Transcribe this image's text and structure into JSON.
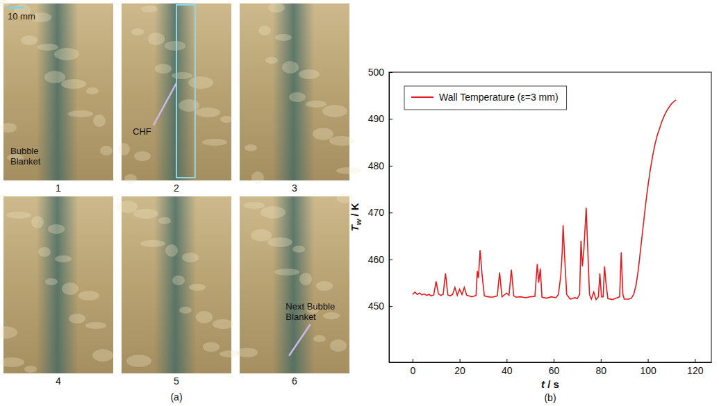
{
  "chart_data": {
    "type": "line",
    "caption": "(b)",
    "x_label": {
      "symbol": "t",
      "unit": " / s"
    },
    "y_label": {
      "symbol": "T",
      "subscript": "w",
      "unit": " / K"
    },
    "xlim": [
      -10,
      127
    ],
    "ylim": [
      438,
      500
    ],
    "xticks": [
      0,
      20,
      40,
      60,
      80,
      100,
      120
    ],
    "yticks": [
      450,
      460,
      470,
      480,
      490,
      500
    ],
    "grid": false,
    "legend": "upper left",
    "x": [
      0,
      1,
      2,
      3,
      4,
      5,
      6,
      7,
      8,
      9,
      10,
      11,
      12,
      13,
      14,
      15,
      16,
      17,
      18,
      19,
      20,
      21,
      22,
      23,
      24,
      25,
      26,
      27,
      27.5,
      28,
      28.7,
      29.5,
      30.5,
      32,
      34,
      36,
      37,
      38,
      40,
      41,
      42,
      43,
      44,
      46,
      48,
      50,
      52,
      53,
      53.6,
      54.3,
      55,
      57,
      59,
      61,
      62,
      63,
      63.6,
      64,
      64.6,
      65.5,
      67,
      69,
      70,
      71,
      71.6,
      72.2,
      72.8,
      73.3,
      73.8,
      74.4,
      75.2,
      76,
      77,
      78,
      79,
      79.6,
      80.3,
      81,
      81.6,
      82.2,
      83,
      85,
      87,
      88,
      88.7,
      89.4,
      90,
      92,
      93,
      94,
      95,
      96,
      97,
      98,
      99,
      100,
      101,
      102,
      103,
      104,
      105,
      106,
      107,
      108,
      109,
      110,
      111,
      112
    ],
    "series": [
      {
        "name": "Wall Temperature (ε=3 mm)",
        "color": "#e41a1c",
        "line_style": "solid",
        "values": [
          452.5,
          453.0,
          452.5,
          452.8,
          452.4,
          452.6,
          452.3,
          452.5,
          452.2,
          452.4,
          455.3,
          452.6,
          452.3,
          452.5,
          457.0,
          452.4,
          452.2,
          452.5,
          454.0,
          452.3,
          453.6,
          452.5,
          454.0,
          452.3,
          452.2,
          452.0,
          452.1,
          452.3,
          457.5,
          456.0,
          462.0,
          457.0,
          452.2,
          452.0,
          451.9,
          452.2,
          457.2,
          452.0,
          452.8,
          452.3,
          457.8,
          452.2,
          451.9,
          452.0,
          451.8,
          452.0,
          452.1,
          459.0,
          455.0,
          458.0,
          451.9,
          451.7,
          452.0,
          451.8,
          452.5,
          456.5,
          461.5,
          467.3,
          461.0,
          452.5,
          451.5,
          451.8,
          451.6,
          452.5,
          464.0,
          458.5,
          462.0,
          466.5,
          471.0,
          463.0,
          452.5,
          451.5,
          453.0,
          451.4,
          452.0,
          457.0,
          452.0,
          452.0,
          458.5,
          455.0,
          451.6,
          451.4,
          451.8,
          452.0,
          461.5,
          452.5,
          451.5,
          451.5,
          451.7,
          452.5,
          454.5,
          458.0,
          462.5,
          467.0,
          471.5,
          475.5,
          479.0,
          482.0,
          484.5,
          486.5,
          488.0,
          489.5,
          490.7,
          491.7,
          492.5,
          493.2,
          493.7,
          494.1
        ]
      }
    ]
  },
  "photo_panel": {
    "caption": "(a)",
    "scale_bar": "10 mm",
    "frames": [
      {
        "label": "1",
        "annotation": "Bubble Blanket"
      },
      {
        "label": "2",
        "annotation": "CHF"
      },
      {
        "label": "3"
      },
      {
        "label": "4"
      },
      {
        "label": "5"
      },
      {
        "label": "6",
        "annotation": "Next Bubble Blanket"
      }
    ]
  }
}
